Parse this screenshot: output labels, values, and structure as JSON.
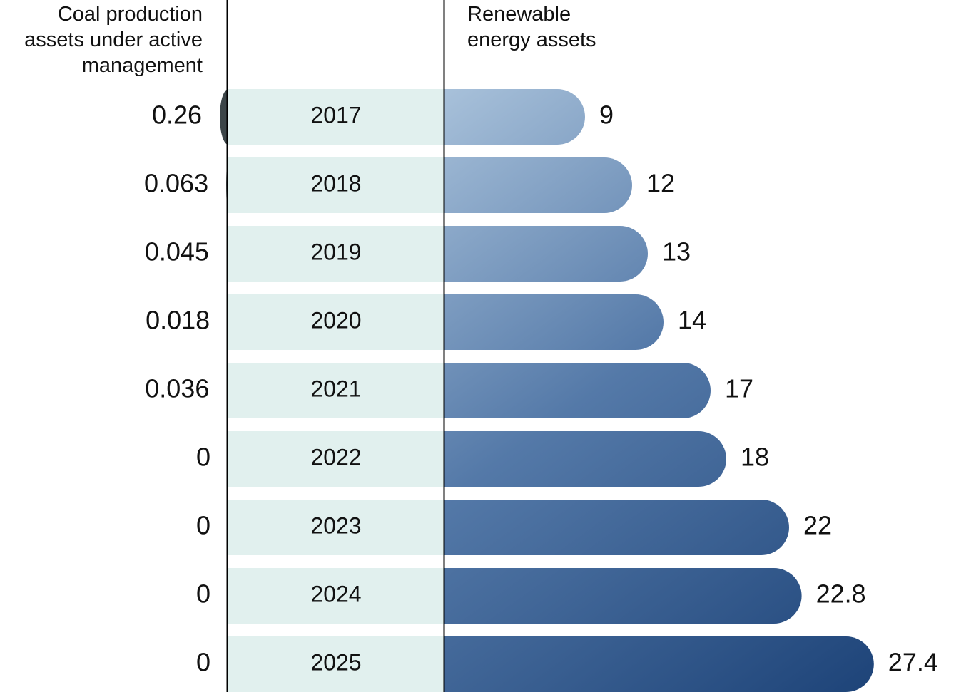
{
  "chart_data": {
    "type": "bar",
    "categories": [
      "2017",
      "2018",
      "2019",
      "2020",
      "2021",
      "2022",
      "2023",
      "2024",
      "2025"
    ],
    "series": [
      {
        "name": "Coal production assets under active management",
        "color": "#3b4548",
        "values": [
          0.26,
          0.063,
          0.045,
          0.018,
          0.036,
          0,
          0,
          0,
          0
        ]
      },
      {
        "name": "Renewable energy assets",
        "color": "#2f5a8e",
        "values": [
          9,
          12,
          13,
          14,
          17,
          18,
          22,
          22.8,
          27.4
        ]
      }
    ]
  }
}
